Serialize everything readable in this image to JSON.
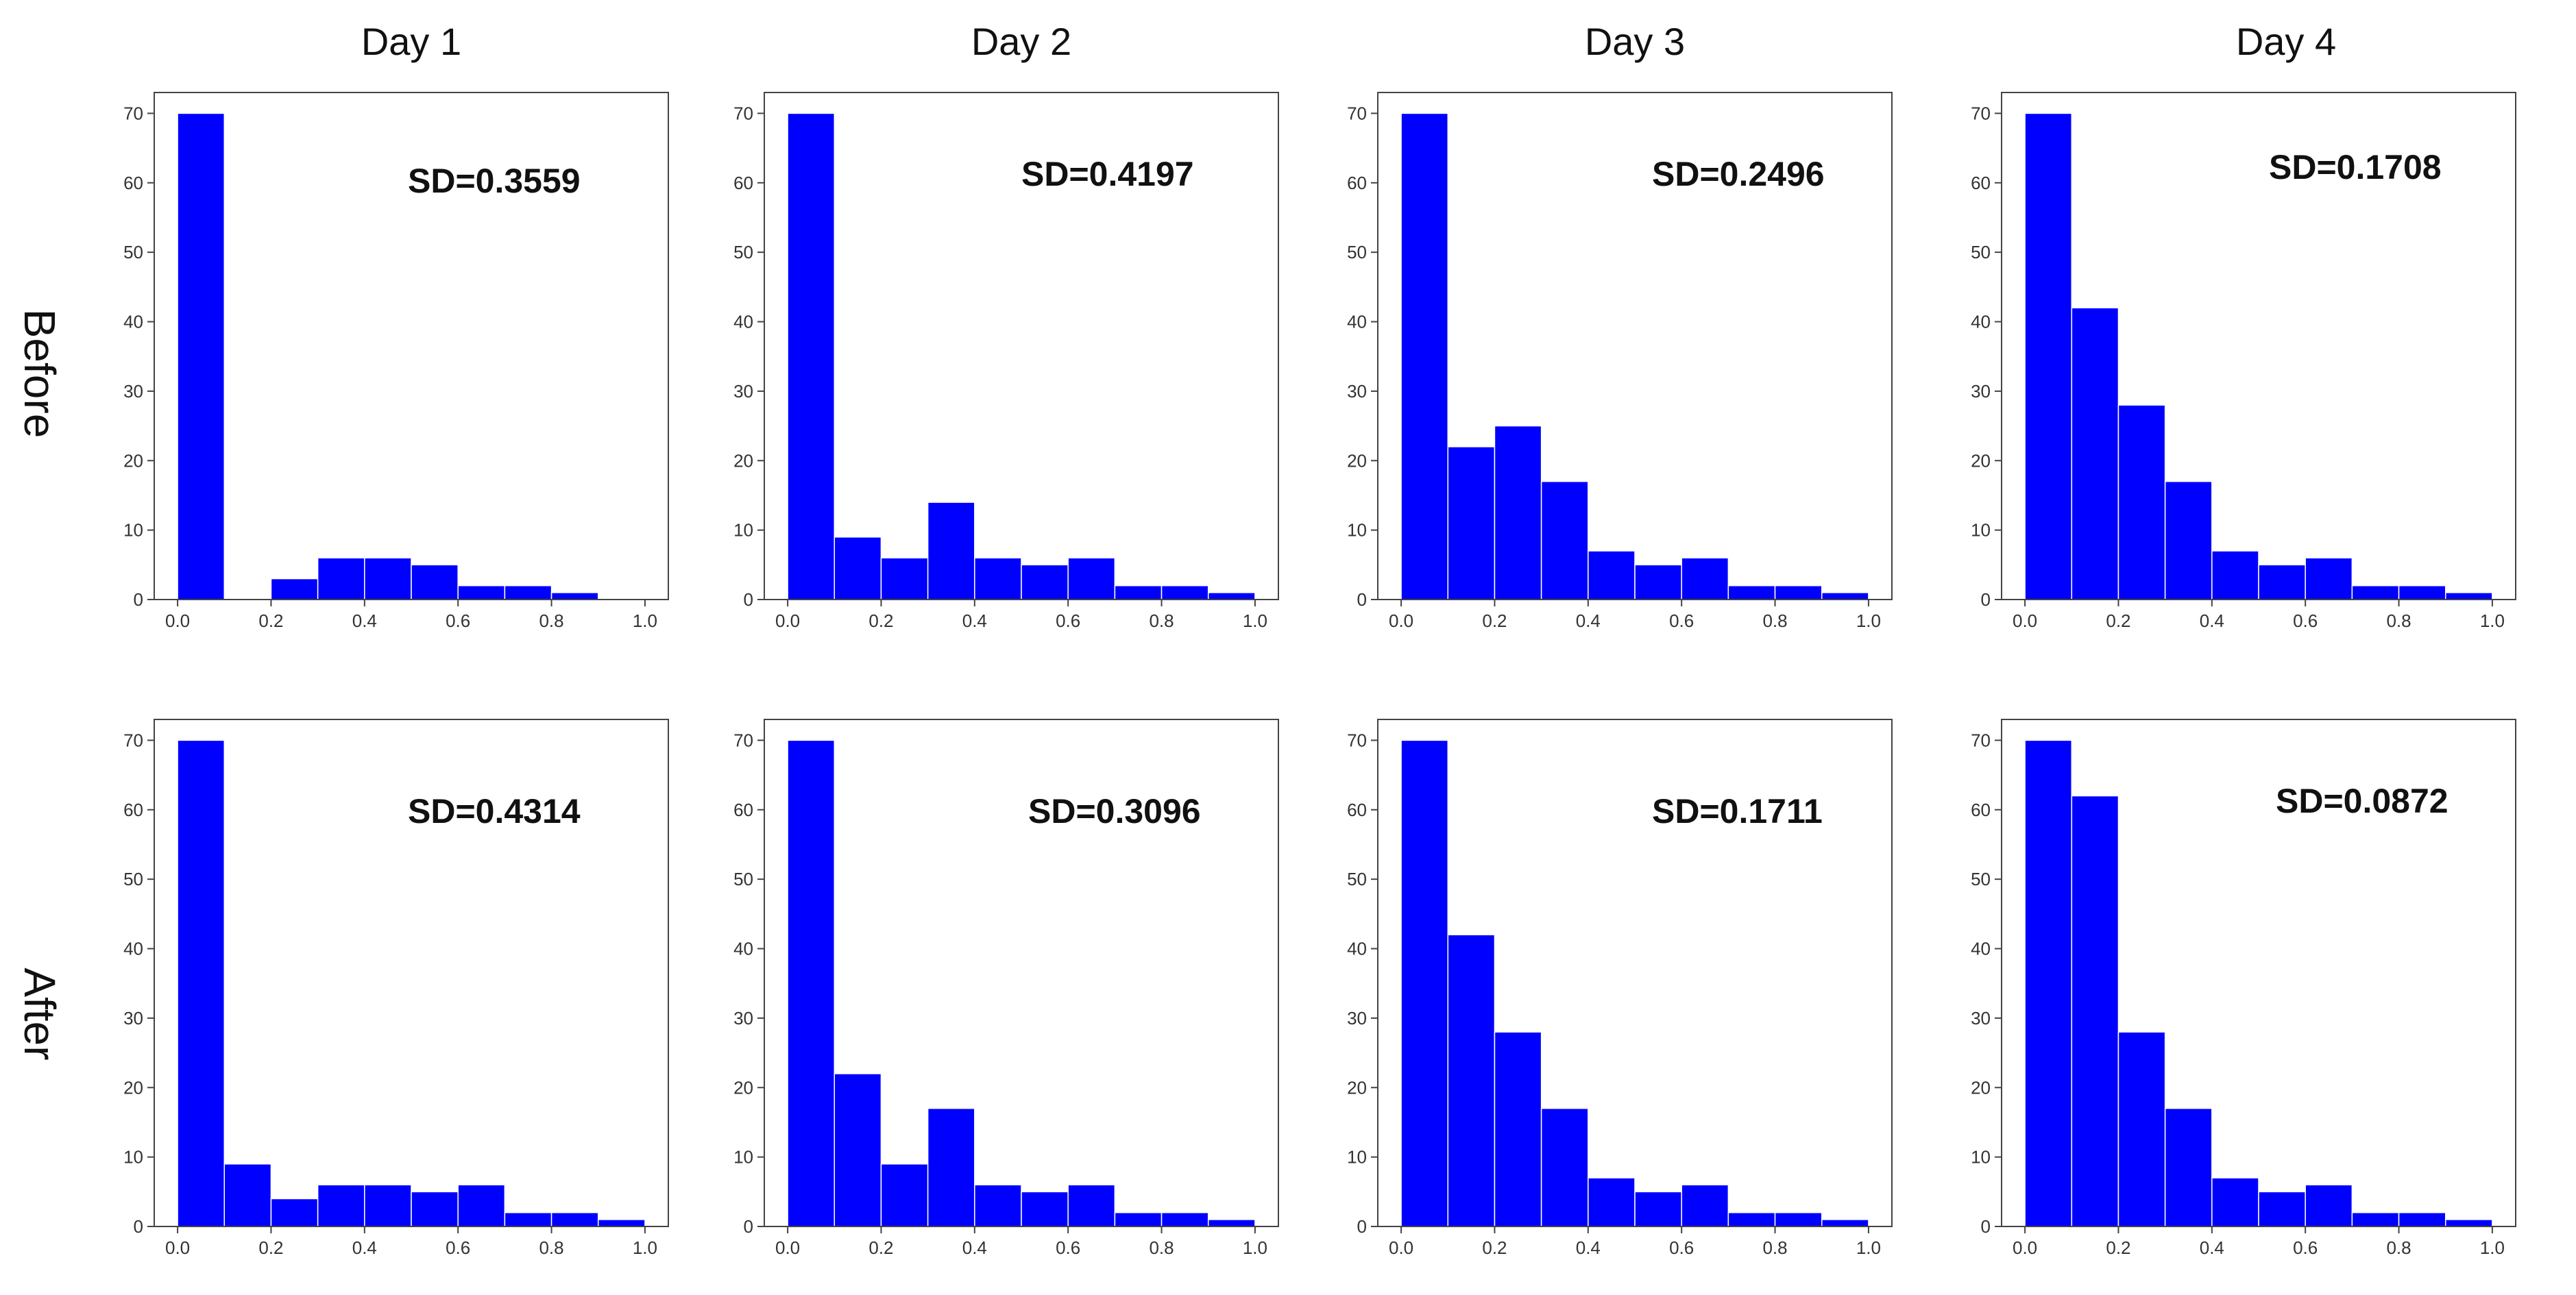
{
  "columns": [
    "Day 1",
    "Day 2",
    "Day 3",
    "Day 4"
  ],
  "rows": [
    "Before",
    "After"
  ],
  "chart_data": [
    {
      "type": "bar",
      "row": "Before",
      "column": "Day 1",
      "annotation": "SD=0.3559",
      "bin_edges": [
        0.0,
        0.1,
        0.2,
        0.3,
        0.4,
        0.5,
        0.6,
        0.7,
        0.8,
        0.9,
        1.0
      ],
      "values": [
        70,
        0,
        3,
        6,
        6,
        5,
        2,
        2,
        1,
        0
      ],
      "xticks": [
        "0.0",
        "0.2",
        "0.4",
        "0.6",
        "0.8",
        "1.0"
      ],
      "yticks": [
        "0",
        "10",
        "20",
        "30",
        "40",
        "50",
        "60",
        "70"
      ],
      "xlim": [
        -0.05,
        1.05
      ],
      "ylim": [
        0,
        73
      ],
      "bar_color": "#0000ff"
    },
    {
      "type": "bar",
      "row": "Before",
      "column": "Day 2",
      "annotation": "SD=0.4197",
      "bin_edges": [
        0.0,
        0.1,
        0.2,
        0.3,
        0.4,
        0.5,
        0.6,
        0.7,
        0.8,
        0.9,
        1.0
      ],
      "values": [
        70,
        9,
        6,
        14,
        6,
        5,
        6,
        2,
        2,
        1
      ],
      "xticks": [
        "0.0",
        "0.2",
        "0.4",
        "0.6",
        "0.8",
        "1.0"
      ],
      "yticks": [
        "0",
        "10",
        "20",
        "30",
        "40",
        "50",
        "60",
        "70"
      ],
      "xlim": [
        -0.05,
        1.05
      ],
      "ylim": [
        0,
        73
      ],
      "bar_color": "#0000ff"
    },
    {
      "type": "bar",
      "row": "Before",
      "column": "Day 3",
      "annotation": "SD=0.2496",
      "bin_edges": [
        0.0,
        0.1,
        0.2,
        0.3,
        0.4,
        0.5,
        0.6,
        0.7,
        0.8,
        0.9,
        1.0
      ],
      "values": [
        70,
        22,
        25,
        17,
        7,
        5,
        6,
        2,
        2,
        1
      ],
      "xticks": [
        "0.0",
        "0.2",
        "0.4",
        "0.6",
        "0.8",
        "1.0"
      ],
      "yticks": [
        "0",
        "10",
        "20",
        "30",
        "40",
        "50",
        "60",
        "70"
      ],
      "xlim": [
        -0.05,
        1.05
      ],
      "ylim": [
        0,
        73
      ],
      "bar_color": "#0000ff"
    },
    {
      "type": "bar",
      "row": "Before",
      "column": "Day 4",
      "annotation": "SD=0.1708",
      "bin_edges": [
        0.0,
        0.1,
        0.2,
        0.3,
        0.4,
        0.5,
        0.6,
        0.7,
        0.8,
        0.9,
        1.0
      ],
      "values": [
        70,
        42,
        28,
        17,
        7,
        5,
        6,
        2,
        2,
        1
      ],
      "xticks": [
        "0.0",
        "0.2",
        "0.4",
        "0.6",
        "0.8",
        "1.0"
      ],
      "yticks": [
        "0",
        "10",
        "20",
        "30",
        "40",
        "50",
        "60",
        "70"
      ],
      "xlim": [
        -0.05,
        1.05
      ],
      "ylim": [
        0,
        73
      ],
      "bar_color": "#0000ff"
    },
    {
      "type": "bar",
      "row": "After",
      "column": "Day 1",
      "annotation": "SD=0.4314",
      "bin_edges": [
        0.0,
        0.1,
        0.2,
        0.3,
        0.4,
        0.5,
        0.6,
        0.7,
        0.8,
        0.9,
        1.0
      ],
      "values": [
        70,
        9,
        4,
        6,
        6,
        5,
        6,
        2,
        2,
        1
      ],
      "xticks": [
        "0.0",
        "0.2",
        "0.4",
        "0.6",
        "0.8",
        "1.0"
      ],
      "yticks": [
        "0",
        "10",
        "20",
        "30",
        "40",
        "50",
        "60",
        "70"
      ],
      "xlim": [
        -0.05,
        1.05
      ],
      "ylim": [
        0,
        73
      ],
      "bar_color": "#0000ff"
    },
    {
      "type": "bar",
      "row": "After",
      "column": "Day 2",
      "annotation": "SD=0.3096",
      "bin_edges": [
        0.0,
        0.1,
        0.2,
        0.3,
        0.4,
        0.5,
        0.6,
        0.7,
        0.8,
        0.9,
        1.0
      ],
      "values": [
        70,
        22,
        9,
        17,
        6,
        5,
        6,
        2,
        2,
        1
      ],
      "xticks": [
        "0.0",
        "0.2",
        "0.4",
        "0.6",
        "0.8",
        "1.0"
      ],
      "yticks": [
        "0",
        "10",
        "20",
        "30",
        "40",
        "50",
        "60",
        "70"
      ],
      "xlim": [
        -0.05,
        1.05
      ],
      "ylim": [
        0,
        73
      ],
      "bar_color": "#0000ff"
    },
    {
      "type": "bar",
      "row": "After",
      "column": "Day 3",
      "annotation": "SD=0.1711",
      "bin_edges": [
        0.0,
        0.1,
        0.2,
        0.3,
        0.4,
        0.5,
        0.6,
        0.7,
        0.8,
        0.9,
        1.0
      ],
      "values": [
        70,
        42,
        28,
        17,
        7,
        5,
        6,
        2,
        2,
        1
      ],
      "xticks": [
        "0.0",
        "0.2",
        "0.4",
        "0.6",
        "0.8",
        "1.0"
      ],
      "yticks": [
        "0",
        "10",
        "20",
        "30",
        "40",
        "50",
        "60",
        "70"
      ],
      "xlim": [
        -0.05,
        1.05
      ],
      "ylim": [
        0,
        73
      ],
      "bar_color": "#0000ff"
    },
    {
      "type": "bar",
      "row": "After",
      "column": "Day 4",
      "annotation": "SD=0.0872",
      "bin_edges": [
        0.0,
        0.1,
        0.2,
        0.3,
        0.4,
        0.5,
        0.6,
        0.7,
        0.8,
        0.9,
        1.0
      ],
      "values": [
        70,
        62,
        28,
        17,
        7,
        5,
        6,
        2,
        2,
        1
      ],
      "xticks": [
        "0.0",
        "0.2",
        "0.4",
        "0.6",
        "0.8",
        "1.0"
      ],
      "yticks": [
        "0",
        "10",
        "20",
        "30",
        "40",
        "50",
        "60",
        "70"
      ],
      "xlim": [
        -0.05,
        1.05
      ],
      "ylim": [
        0,
        73
      ],
      "bar_color": "#0000ff"
    }
  ]
}
